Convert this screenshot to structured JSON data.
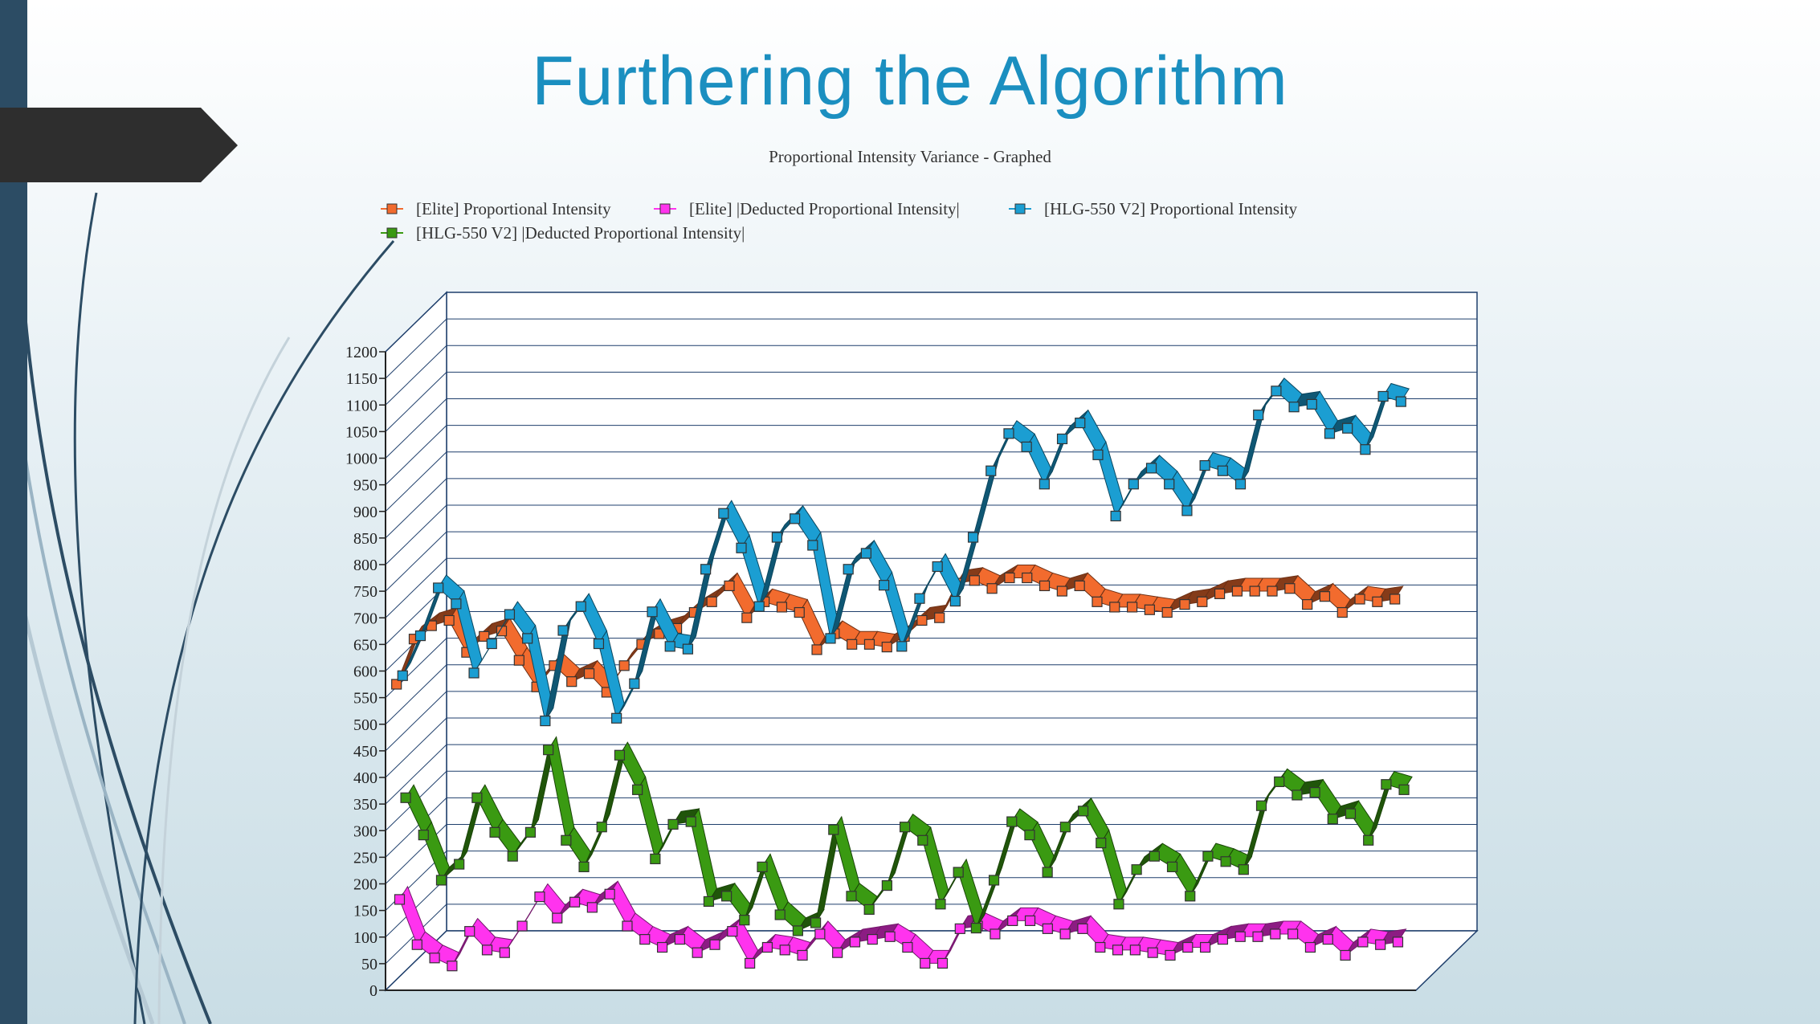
{
  "slide": {
    "title": "Furthering the Algorithm"
  },
  "colors": {
    "sidebar": "#2c4c64",
    "arrow": "#2e2e2e",
    "title": "#1b8fc0"
  },
  "chart_data": {
    "type": "line",
    "title": "Proportional Intensity Variance - Graphed",
    "xlabel": "",
    "ylabel": "",
    "ylim": [
      0,
      1200
    ],
    "yticks": [
      0,
      50,
      100,
      150,
      200,
      250,
      300,
      350,
      400,
      450,
      500,
      550,
      600,
      650,
      700,
      750,
      800,
      850,
      900,
      950,
      1000,
      1050,
      1100,
      1150,
      1200
    ],
    "grid": true,
    "legend_position": "top",
    "style": "3d-ribbon",
    "series": [
      {
        "name": "[Elite] Proportional Intensity",
        "color": "#f26b2e",
        "values": [
          555,
          640,
          665,
          675,
          615,
          645,
          655,
          600,
          550,
          590,
          560,
          575,
          540,
          590,
          630,
          650,
          660,
          690,
          710,
          740,
          680,
          710,
          700,
          690,
          620,
          650,
          630,
          630,
          625,
          645,
          675,
          680,
          745,
          750,
          735,
          755,
          755,
          740,
          730,
          740,
          710,
          700,
          700,
          695,
          690,
          705,
          710,
          725,
          730,
          730,
          730,
          735,
          705,
          720,
          690,
          715,
          710,
          715
        ]
      },
      {
        "name": "[Elite] |Deducted Proportional Intensity|",
        "color": "#ff33ee",
        "values": [
          145,
          60,
          35,
          20,
          85,
          50,
          45,
          95,
          150,
          110,
          140,
          130,
          155,
          95,
          70,
          55,
          70,
          45,
          60,
          85,
          25,
          55,
          50,
          40,
          80,
          45,
          65,
          70,
          75,
          55,
          25,
          25,
          90,
          95,
          80,
          105,
          105,
          90,
          80,
          90,
          55,
          50,
          50,
          45,
          40,
          55,
          55,
          70,
          75,
          75,
          80,
          80,
          55,
          70,
          40,
          65,
          60,
          65
        ]
      },
      {
        "name": "[HLG-550 V2] Proportional Intensity",
        "color": "#1b9ed2",
        "values": [
          560,
          635,
          725,
          695,
          565,
          620,
          675,
          630,
          475,
          645,
          690,
          620,
          480,
          545,
          680,
          615,
          610,
          760,
          865,
          800,
          690,
          820,
          855,
          805,
          630,
          760,
          790,
          730,
          615,
          705,
          765,
          700,
          820,
          945,
          1015,
          990,
          920,
          1005,
          1035,
          975,
          860,
          920,
          950,
          920,
          870,
          955,
          945,
          920,
          1050,
          1095,
          1065,
          1070,
          1015,
          1025,
          985,
          1085,
          1075
        ]
      },
      {
        "name": "[HLG-550 V2] |Deducted Proportional Intensity|",
        "color": "#3a9a12",
        "values": [
          325,
          255,
          170,
          200,
          325,
          260,
          215,
          260,
          415,
          245,
          195,
          270,
          405,
          340,
          210,
          275,
          280,
          130,
          140,
          95,
          195,
          105,
          75,
          90,
          265,
          140,
          115,
          160,
          270,
          245,
          125,
          185,
          80,
          170,
          280,
          255,
          185,
          270,
          300,
          240,
          125,
          190,
          215,
          195,
          140,
          215,
          205,
          190,
          310,
          355,
          330,
          335,
          285,
          295,
          245,
          350,
          340
        ]
      }
    ]
  }
}
